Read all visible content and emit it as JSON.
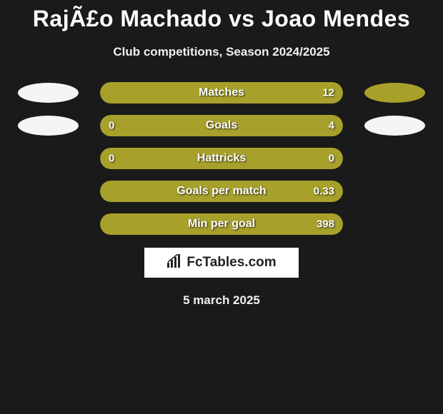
{
  "title": "RajÃ£o Machado vs Joao Mendes",
  "subtitle": "Club competitions, Season 2024/2025",
  "date": "5 march 2025",
  "footer_brand": "FcTables.com",
  "colors": {
    "background": "#1a1a1a",
    "left_bar": "#a7a12b",
    "right_bar": "#a7a12b",
    "left_ellipse_row1": "#f5f5f5",
    "right_ellipse_row1": "#a7a12b",
    "left_ellipse_row2": "#f5f5f5",
    "right_ellipse_row2": "#f5f5f5",
    "text": "#ffffff"
  },
  "rows": [
    {
      "label": "Matches",
      "left_value": "",
      "right_value": "12",
      "left_pct": 50,
      "right_pct": 50,
      "show_left_ellipse": true,
      "show_right_ellipse": true,
      "left_ellipse_color": "#f5f5f5",
      "right_ellipse_color": "#a7a12b"
    },
    {
      "label": "Goals",
      "left_value": "0",
      "right_value": "4",
      "left_pct": 18,
      "right_pct": 82,
      "show_left_ellipse": true,
      "show_right_ellipse": true,
      "left_ellipse_color": "#f5f5f5",
      "right_ellipse_color": "#f5f5f5"
    },
    {
      "label": "Hattricks",
      "left_value": "0",
      "right_value": "0",
      "left_pct": 50,
      "right_pct": 50,
      "show_left_ellipse": false,
      "show_right_ellipse": false
    },
    {
      "label": "Goals per match",
      "left_value": "",
      "right_value": "0.33",
      "left_pct": 50,
      "right_pct": 50,
      "show_left_ellipse": false,
      "show_right_ellipse": false
    },
    {
      "label": "Min per goal",
      "left_value": "",
      "right_value": "398",
      "left_pct": 50,
      "right_pct": 50,
      "show_left_ellipse": false,
      "show_right_ellipse": false
    }
  ]
}
